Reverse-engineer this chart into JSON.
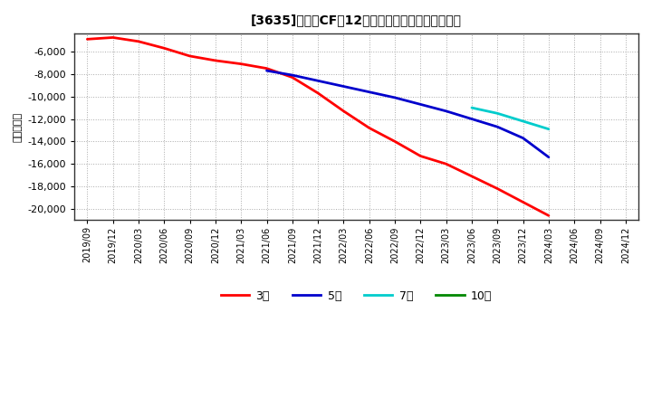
{
  "title": "[3635]　投賄CFの12か月移動合計の平均値の推移",
  "ylabel": "（百万円）",
  "background_color": "#ffffff",
  "plot_bg_color": "#ffffff",
  "grid_color": "#aaaaaa",
  "ylim": [
    -21000,
    -4400
  ],
  "yticks": [
    -20000,
    -18000,
    -16000,
    -14000,
    -12000,
    -10000,
    -8000,
    -6000
  ],
  "series": {
    "3year": {
      "color": "#ff0000",
      "label": "3年",
      "x": [
        "2019/09",
        "2019/12",
        "2020/03",
        "2020/06",
        "2020/09",
        "2020/12",
        "2021/03",
        "2021/06",
        "2021/09",
        "2021/12",
        "2022/03",
        "2022/06",
        "2022/09",
        "2022/12",
        "2023/03",
        "2023/06",
        "2023/09",
        "2023/12",
        "2024/03"
      ],
      "y": [
        -4900,
        -4750,
        -5100,
        -5700,
        -6400,
        -6800,
        -7100,
        -7500,
        -8300,
        -9700,
        -11300,
        -12800,
        -14000,
        -15300,
        -16000,
        -17100,
        -18200,
        -19400,
        -20600
      ]
    },
    "5year": {
      "color": "#0000cc",
      "label": "5年",
      "x": [
        "2021/06",
        "2021/09",
        "2021/12",
        "2022/03",
        "2022/06",
        "2022/09",
        "2022/12",
        "2023/03",
        "2023/06",
        "2023/09",
        "2023/12",
        "2024/03"
      ],
      "y": [
        -7700,
        -8100,
        -8600,
        -9100,
        -9600,
        -10100,
        -10700,
        -11300,
        -12000,
        -12700,
        -13700,
        -15400
      ]
    },
    "7year": {
      "color": "#00cccc",
      "label": "7年",
      "x": [
        "2023/06",
        "2023/09",
        "2023/12",
        "2024/03"
      ],
      "y": [
        -11000,
        -11500,
        -12200,
        -12900
      ]
    },
    "10year": {
      "color": "#008800",
      "label": "10年",
      "x": [],
      "y": []
    }
  },
  "xtick_labels": [
    "2019/09",
    "2019/12",
    "2020/03",
    "2020/06",
    "2020/09",
    "2020/12",
    "2021/03",
    "2021/06",
    "2021/09",
    "2021/12",
    "2022/03",
    "2022/06",
    "2022/09",
    "2022/12",
    "2023/03",
    "2023/06",
    "2023/09",
    "2023/12",
    "2024/03",
    "2024/06",
    "2024/09",
    "2024/12"
  ]
}
